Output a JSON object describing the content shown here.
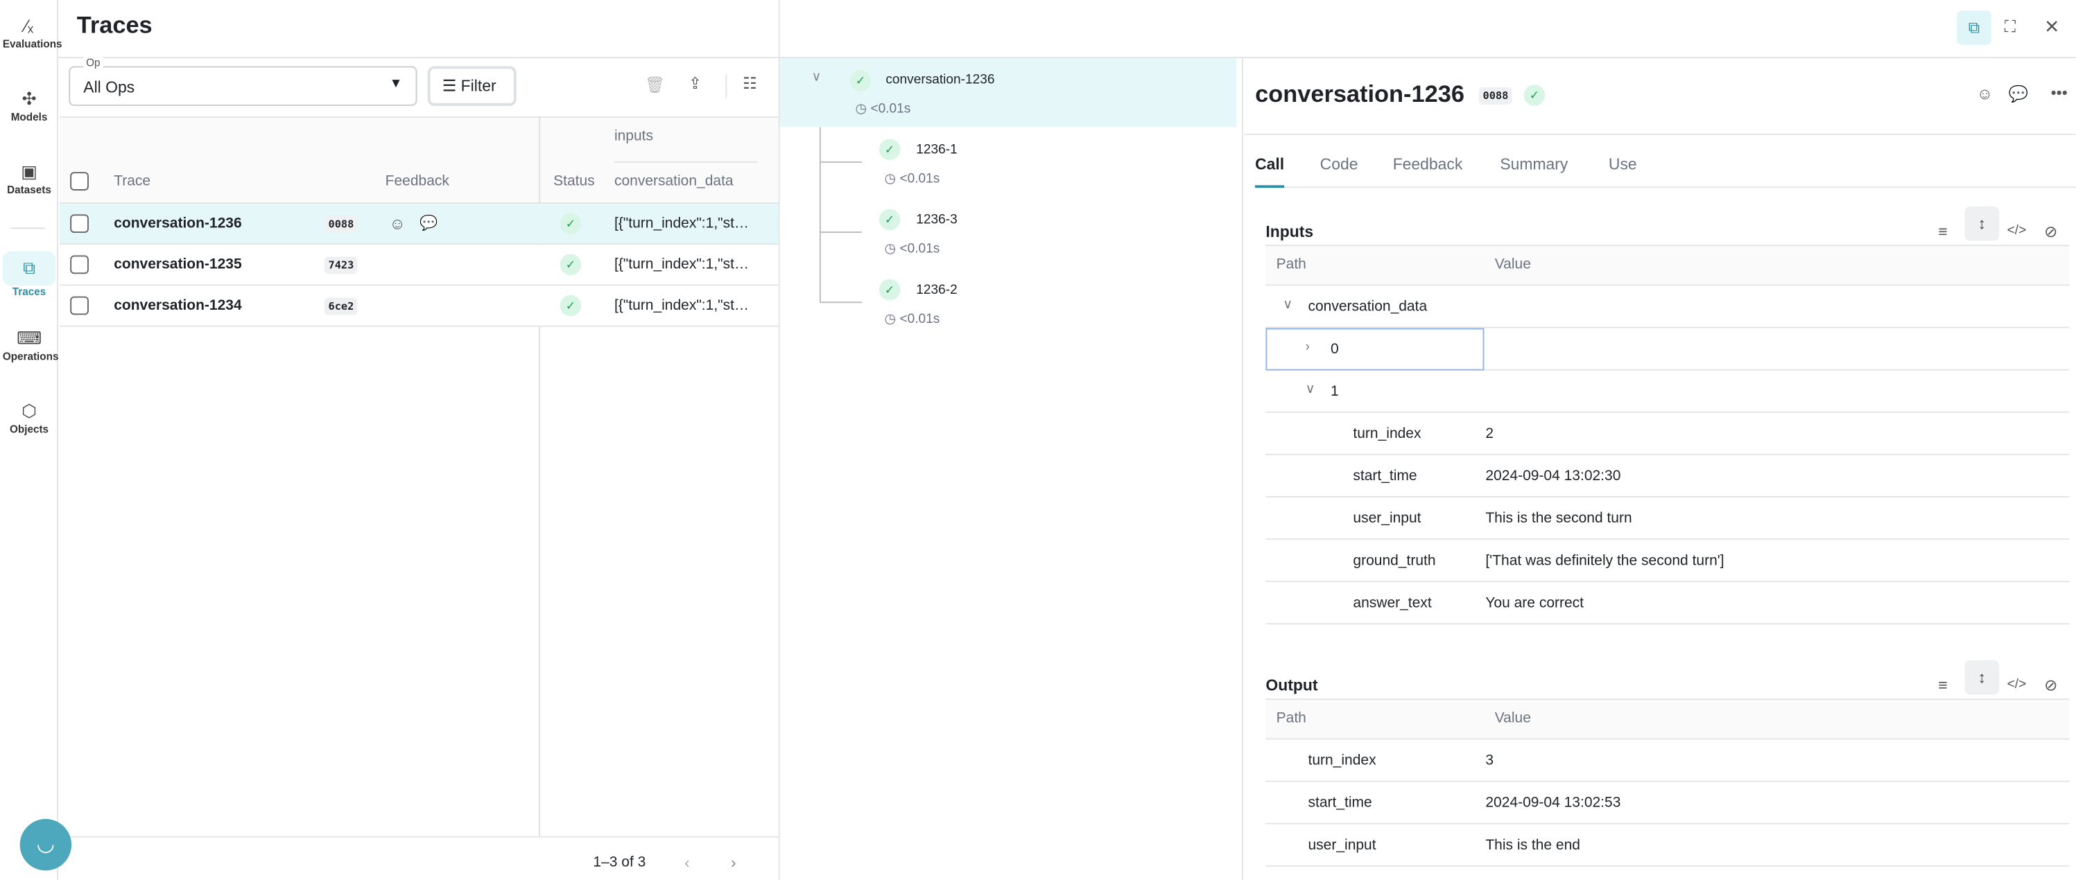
{
  "sidebar": {
    "items": [
      {
        "label": "Evaluations",
        "icon": "evaluations-icon"
      },
      {
        "label": "Models",
        "icon": "models-icon"
      },
      {
        "label": "Datasets",
        "icon": "datasets-icon"
      },
      {
        "label": "Traces",
        "icon": "traces-icon",
        "active": true
      },
      {
        "label": "Operations",
        "icon": "operations-icon"
      },
      {
        "label": "Objects",
        "icon": "objects-icon"
      }
    ]
  },
  "header": {
    "title": "Traces"
  },
  "toolbar": {
    "op_label": "Op",
    "op_value": "All Ops",
    "filter_label": "Filter"
  },
  "table": {
    "group_header": "inputs",
    "columns": {
      "trace": "Trace",
      "feedback": "Feedback",
      "status": "Status",
      "conversation_data": "conversation_data"
    },
    "rows": [
      {
        "trace": "conversation-1236",
        "id": "0088",
        "status": "success",
        "conversation_data": "[{\"turn_index\":1,\"st…",
        "selected": true
      },
      {
        "trace": "conversation-1235",
        "id": "7423",
        "status": "success",
        "conversation_data": "[{\"turn_index\":1,\"st…"
      },
      {
        "trace": "conversation-1234",
        "id": "6ce2",
        "status": "success",
        "conversation_data": "[{\"turn_index\":1,\"st…"
      }
    ],
    "pagination": "1–3 of 3"
  },
  "tree": {
    "root": {
      "name": "conversation-1236",
      "duration": "<0.01s"
    },
    "children": [
      {
        "name": "1236-1",
        "duration": "<0.01s"
      },
      {
        "name": "1236-3",
        "duration": "<0.01s"
      },
      {
        "name": "1236-2",
        "duration": "<0.01s"
      }
    ]
  },
  "detail": {
    "title": "conversation-1236",
    "id": "0088",
    "tabs": [
      "Call",
      "Code",
      "Feedback",
      "Summary",
      "Use"
    ],
    "active_tab": "Call",
    "inputs": {
      "title": "Inputs",
      "path_header": "Path",
      "value_header": "Value",
      "rows": [
        {
          "path": "conversation_data",
          "value": "",
          "expanded": true,
          "level": 0
        },
        {
          "path": "0",
          "value": "",
          "expanded": false,
          "level": 1
        },
        {
          "path": "1",
          "value": "",
          "expanded": true,
          "level": 1
        },
        {
          "path": "turn_index",
          "value": "2",
          "level": 2
        },
        {
          "path": "start_time",
          "value": "2024-09-04 13:02:30",
          "level": 2
        },
        {
          "path": "user_input",
          "value": "This is the second turn",
          "level": 2
        },
        {
          "path": "ground_truth",
          "value": "['That was definitely the second turn']",
          "level": 2
        },
        {
          "path": "answer_text",
          "value": "You are correct",
          "level": 2
        }
      ]
    },
    "output": {
      "title": "Output",
      "path_header": "Path",
      "value_header": "Value",
      "rows": [
        {
          "path": "turn_index",
          "value": "3"
        },
        {
          "path": "start_time",
          "value": "2024-09-04 13:02:53"
        },
        {
          "path": "user_input",
          "value": "This is the end"
        }
      ]
    }
  },
  "colors": {
    "accent": "#2b8ea3",
    "selected_row": "#e6f7fa",
    "success": "#1f9d55",
    "chat_button": "#4ea8bd"
  }
}
